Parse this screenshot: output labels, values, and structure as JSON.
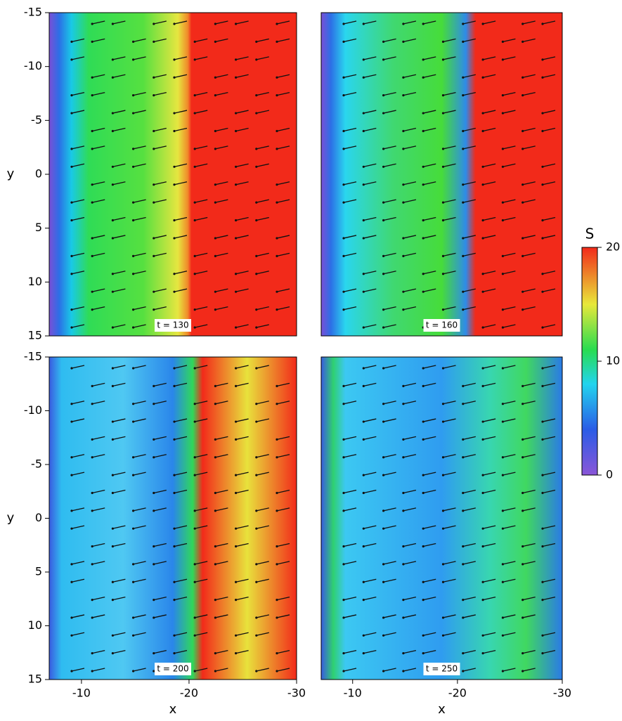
{
  "chart_data": [
    {
      "type": "heatmap",
      "annotation": "t = 130",
      "xlim": [
        -7,
        -30
      ],
      "ylim": [
        -15,
        15
      ],
      "ylabel": "y",
      "yticks": [
        -15,
        -10,
        -5,
        0,
        5,
        10,
        15
      ]
    },
    {
      "type": "heatmap",
      "annotation": "t = 160",
      "xlim": [
        -7,
        -30
      ],
      "ylim": [
        -15,
        15
      ]
    },
    {
      "type": "heatmap",
      "annotation": "t = 200",
      "xlim": [
        -7,
        -30
      ],
      "ylim": [
        -15,
        15
      ],
      "xlabel": "x",
      "ylabel": "y",
      "xticks": [
        -10,
        -20,
        -30
      ],
      "yticks": [
        -15,
        -10,
        -5,
        0,
        5,
        10,
        15
      ]
    },
    {
      "type": "heatmap",
      "annotation": "t = 250",
      "xlim": [
        -7,
        -30
      ],
      "ylim": [
        -15,
        15
      ],
      "xlabel": "x",
      "xticks": [
        -10,
        -20,
        -30
      ]
    }
  ],
  "colorbar": {
    "label": "S",
    "lim": [
      0,
      20
    ],
    "ticks": [
      0,
      10,
      20
    ]
  }
}
